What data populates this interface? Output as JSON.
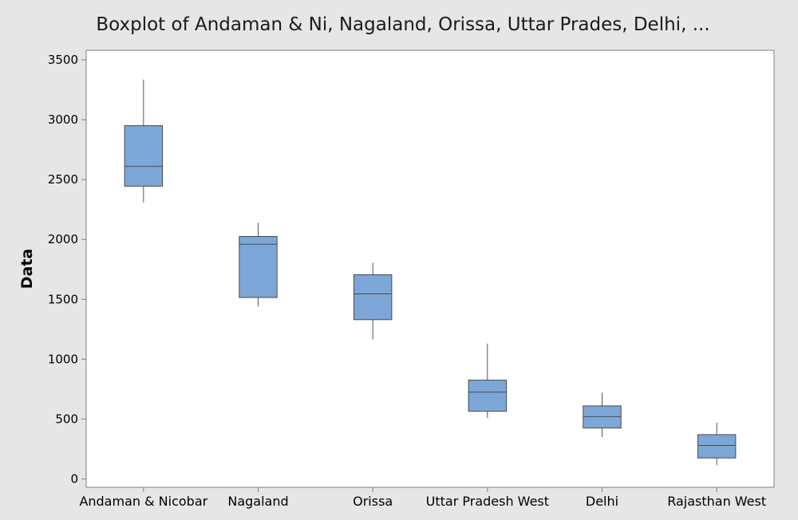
{
  "chart_data": {
    "type": "boxplot",
    "title": "Boxplot of Andaman & Ni, Nagaland, Orissa, Uttar Prades, Delhi, ...",
    "xlabel": "",
    "ylabel": "Data",
    "ylim": [
      -70,
      3580
    ],
    "yticks": [
      0,
      500,
      1000,
      1500,
      2000,
      2500,
      3000,
      3500
    ],
    "ytick_labels": [
      "0",
      "500",
      "1000",
      "1500",
      "2000",
      "2500",
      "3000",
      "3500"
    ],
    "grid": false,
    "legend": "none",
    "categories": [
      "Andaman & Nicobar",
      "Nagaland",
      "Orissa",
      "Uttar Pradesh West",
      "Delhi",
      "Rajasthan West"
    ],
    "boxes": [
      {
        "category": "Andaman & Nicobar",
        "min": 2310,
        "q1": 2445,
        "median": 2610,
        "q3": 2950,
        "max": 3335
      },
      {
        "category": "Nagaland",
        "min": 1440,
        "q1": 1515,
        "median": 1960,
        "q3": 2025,
        "max": 2140
      },
      {
        "category": "Orissa",
        "min": 1165,
        "q1": 1330,
        "median": 1545,
        "q3": 1705,
        "max": 1805
      },
      {
        "category": "Uttar Pradesh West",
        "min": 510,
        "q1": 565,
        "median": 725,
        "q3": 825,
        "max": 1130
      },
      {
        "category": "Delhi",
        "min": 350,
        "q1": 425,
        "median": 520,
        "q3": 610,
        "max": 720
      },
      {
        "category": "Rajasthan West",
        "min": 115,
        "q1": 175,
        "median": 280,
        "q3": 370,
        "max": 470
      }
    ],
    "colors": {
      "background": "#e6e6e6",
      "plot_area": "#ffffff",
      "box_fill": "#7da7d9",
      "box_edge": "#4a4a4a",
      "whisker": "#555555",
      "axis": "#808080"
    }
  }
}
